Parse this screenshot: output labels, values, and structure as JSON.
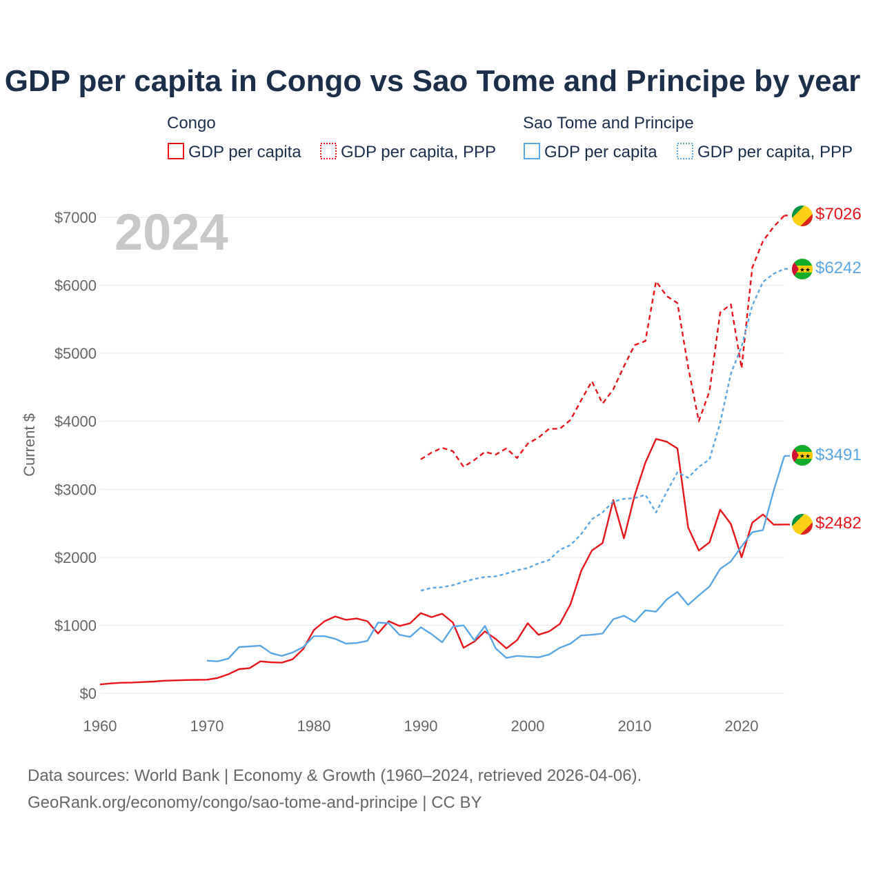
{
  "title": "GDP per capita in Congo vs Sao Tome and Principe by year",
  "year_badge": "2024",
  "legend": {
    "congo": "Congo",
    "stp": "Sao Tome and Principe",
    "series_gdp": "GDP per capita",
    "series_ppp": "GDP per capita, PPP"
  },
  "colors": {
    "congo": "#e8141b",
    "stp": "#5aa6e6"
  },
  "footer": {
    "line1": "Data sources: World Bank | Economy & Growth (1960–2024, retrieved 2026-04-06).",
    "line2": "GeoRank.org/economy/congo/sao-tome-and-principe | CC BY"
  },
  "end_labels": {
    "congo_ppp": "$7026",
    "stp_ppp": "$6242",
    "stp_gdp": "$3491",
    "congo_gdp": "$2482"
  },
  "chart_data": {
    "type": "line",
    "title": "GDP per capita in Congo vs Sao Tome and Principe by year",
    "xlabel": "",
    "ylabel": "Current $",
    "xlim": [
      1960,
      2024
    ],
    "ylim": [
      0,
      7000
    ],
    "xticks": [
      1960,
      1970,
      1980,
      1990,
      2000,
      2010,
      2020
    ],
    "xtick_labels": [
      "1960",
      "1970",
      "1980",
      "1990",
      "2000",
      "2010",
      "2020"
    ],
    "yticks": [
      0,
      1000,
      2000,
      3000,
      4000,
      5000,
      6000,
      7000
    ],
    "ytick_labels": [
      "$0",
      "$1000",
      "$2000",
      "$3000",
      "$4000",
      "$5000",
      "$6000",
      "$7000"
    ],
    "grid": true,
    "series": [
      {
        "name": "Congo GDP per capita",
        "country": "congo",
        "style": "solid",
        "x": [
          1960,
          1961,
          1962,
          1963,
          1964,
          1965,
          1966,
          1967,
          1968,
          1969,
          1970,
          1971,
          1972,
          1973,
          1974,
          1975,
          1976,
          1977,
          1978,
          1979,
          1980,
          1981,
          1982,
          1983,
          1984,
          1985,
          1986,
          1987,
          1988,
          1989,
          1990,
          1991,
          1992,
          1993,
          1994,
          1995,
          1996,
          1997,
          1998,
          1999,
          2000,
          2001,
          2002,
          2003,
          2004,
          2005,
          2006,
          2007,
          2008,
          2009,
          2010,
          2011,
          2012,
          2013,
          2014,
          2015,
          2016,
          2017,
          2018,
          2019,
          2020,
          2021,
          2022,
          2023,
          2024
        ],
        "y": [
          130,
          145,
          155,
          158,
          165,
          172,
          185,
          190,
          195,
          198,
          200,
          225,
          280,
          355,
          370,
          470,
          455,
          450,
          500,
          650,
          930,
          1060,
          1130,
          1080,
          1100,
          1060,
          880,
          1060,
          990,
          1030,
          1180,
          1120,
          1170,
          1040,
          670,
          760,
          910,
          800,
          660,
          780,
          1030,
          860,
          910,
          1020,
          1310,
          1800,
          2100,
          2210,
          2840,
          2280,
          2910,
          3390,
          3740,
          3700,
          3600,
          2440,
          2100,
          2220,
          2700,
          2490,
          2000,
          2510,
          2630,
          2480,
          2482
        ]
      },
      {
        "name": "Congo GDP per capita, PPP",
        "country": "congo",
        "style": "dashed",
        "x": [
          1990,
          1991,
          1992,
          1993,
          1994,
          1995,
          1996,
          1997,
          1998,
          1999,
          2000,
          2001,
          2002,
          2003,
          2004,
          2005,
          2006,
          2007,
          2008,
          2009,
          2010,
          2011,
          2012,
          2013,
          2014,
          2015,
          2016,
          2017,
          2018,
          2019,
          2020,
          2021,
          2022,
          2023,
          2024
        ],
        "y": [
          3440,
          3540,
          3610,
          3560,
          3330,
          3430,
          3550,
          3510,
          3600,
          3460,
          3670,
          3760,
          3890,
          3890,
          4020,
          4310,
          4590,
          4260,
          4470,
          4810,
          5120,
          5180,
          6060,
          5840,
          5740,
          4800,
          4000,
          4440,
          5600,
          5720,
          4780,
          6260,
          6650,
          6860,
          7026
        ]
      },
      {
        "name": "Sao Tome and Principe GDP per capita",
        "country": "stp",
        "style": "solid",
        "x": [
          1970,
          1971,
          1972,
          1973,
          1974,
          1975,
          1976,
          1977,
          1978,
          1979,
          1980,
          1981,
          1982,
          1983,
          1984,
          1985,
          1986,
          1987,
          1988,
          1989,
          1990,
          1991,
          1992,
          1993,
          1994,
          1995,
          1996,
          1997,
          1998,
          1999,
          2000,
          2001,
          2002,
          2003,
          2004,
          2005,
          2006,
          2007,
          2008,
          2009,
          2010,
          2011,
          2012,
          2013,
          2014,
          2015,
          2016,
          2017,
          2018,
          2019,
          2020,
          2021,
          2022,
          2023,
          2024
        ],
        "y": [
          480,
          470,
          510,
          680,
          690,
          700,
          590,
          550,
          600,
          680,
          840,
          840,
          800,
          730,
          740,
          770,
          1040,
          1030,
          860,
          830,
          970,
          870,
          750,
          980,
          1000,
          780,
          990,
          660,
          520,
          550,
          540,
          530,
          570,
          670,
          730,
          850,
          860,
          880,
          1090,
          1140,
          1050,
          1220,
          1200,
          1380,
          1490,
          1300,
          1440,
          1570,
          1830,
          1940,
          2160,
          2370,
          2400,
          2980,
          3491
        ]
      },
      {
        "name": "Sao Tome and Principe GDP per capita, PPP",
        "country": "stp",
        "style": "dotted",
        "x": [
          1990,
          1991,
          1992,
          1993,
          1994,
          1995,
          1996,
          1997,
          1998,
          1999,
          2000,
          2001,
          2002,
          2003,
          2004,
          2005,
          2006,
          2007,
          2008,
          2009,
          2010,
          2011,
          2012,
          2013,
          2014,
          2015,
          2016,
          2017,
          2018,
          2019,
          2020,
          2021,
          2022,
          2023,
          2024
        ],
        "y": [
          1510,
          1550,
          1560,
          1590,
          1640,
          1680,
          1710,
          1720,
          1760,
          1810,
          1840,
          1910,
          1960,
          2110,
          2180,
          2340,
          2560,
          2660,
          2820,
          2860,
          2870,
          2920,
          2660,
          2960,
          3250,
          3170,
          3330,
          3440,
          3980,
          4700,
          5100,
          5700,
          6050,
          6170,
          6242
        ]
      }
    ]
  }
}
